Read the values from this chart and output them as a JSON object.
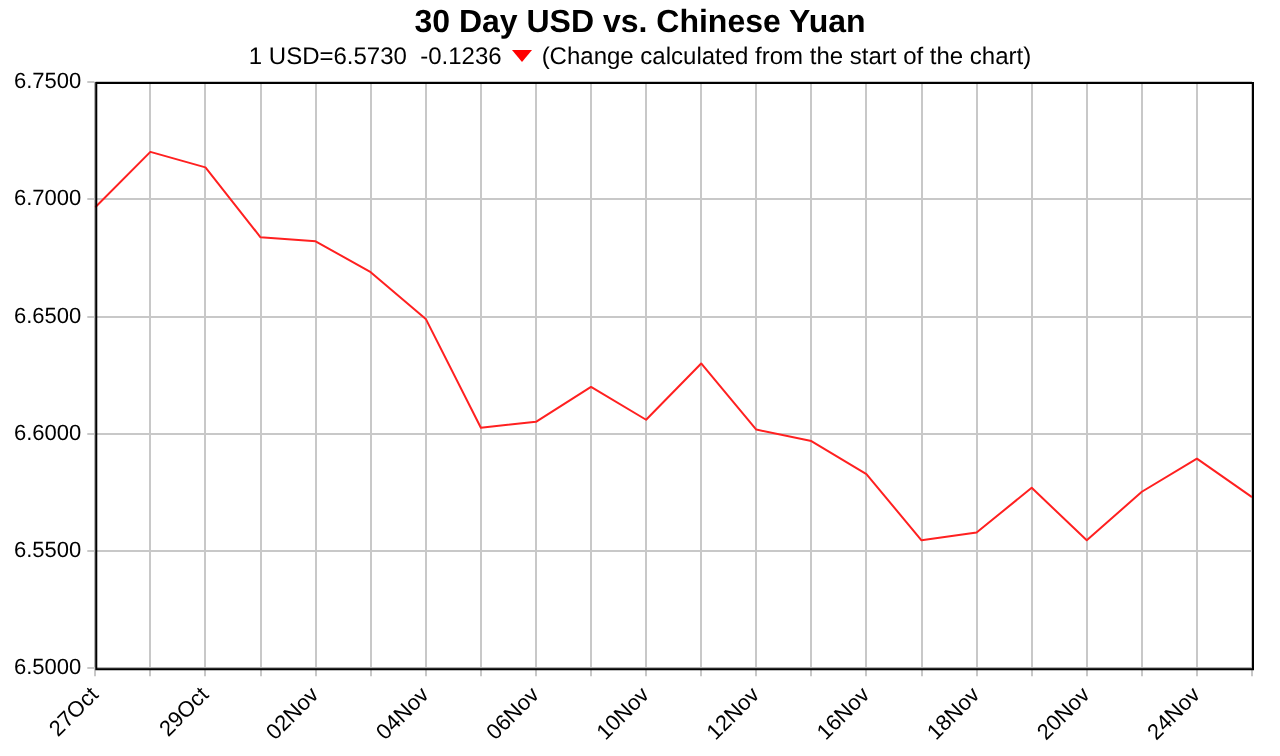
{
  "chart_data": {
    "type": "line",
    "title": "30 Day USD vs. Chinese Yuan",
    "subtitle": "1 USD=6.5730  -0.1236",
    "annotations": [
      "(Change calculated from the start of the chart)"
    ],
    "categories": [
      "27Oct",
      null,
      "29Oct",
      null,
      "02Nov",
      null,
      "04Nov",
      null,
      "06Nov",
      null,
      "10Nov",
      null,
      "12Nov",
      null,
      "16Nov",
      null,
      "18Nov",
      null,
      "20Nov",
      null,
      "24Nov",
      null
    ],
    "series": [
      {
        "color": "#ff2020",
        "values": [
          6.6966,
          6.7202,
          6.7136,
          6.6838,
          6.6821,
          6.6689,
          6.649,
          6.6026,
          6.6051,
          6.62,
          6.606,
          6.63,
          6.6018,
          6.5969,
          6.5828,
          6.5546,
          6.5579,
          6.577,
          6.5546,
          6.5753,
          6.5894,
          6.573
        ]
      }
    ],
    "ylim": [
      6.5,
      6.75
    ],
    "yticks": [
      {
        "value": 6.5,
        "label": "6.5000"
      },
      {
        "value": 6.55,
        "label": "6.5500"
      },
      {
        "value": 6.6,
        "label": "6.6000"
      },
      {
        "value": 6.65,
        "label": "6.6500"
      },
      {
        "value": 6.7,
        "label": "6.7000"
      },
      {
        "value": 6.75,
        "label": "6.7500"
      }
    ],
    "grid": true,
    "legend": false,
    "marker": "none",
    "line_style": "solid"
  }
}
